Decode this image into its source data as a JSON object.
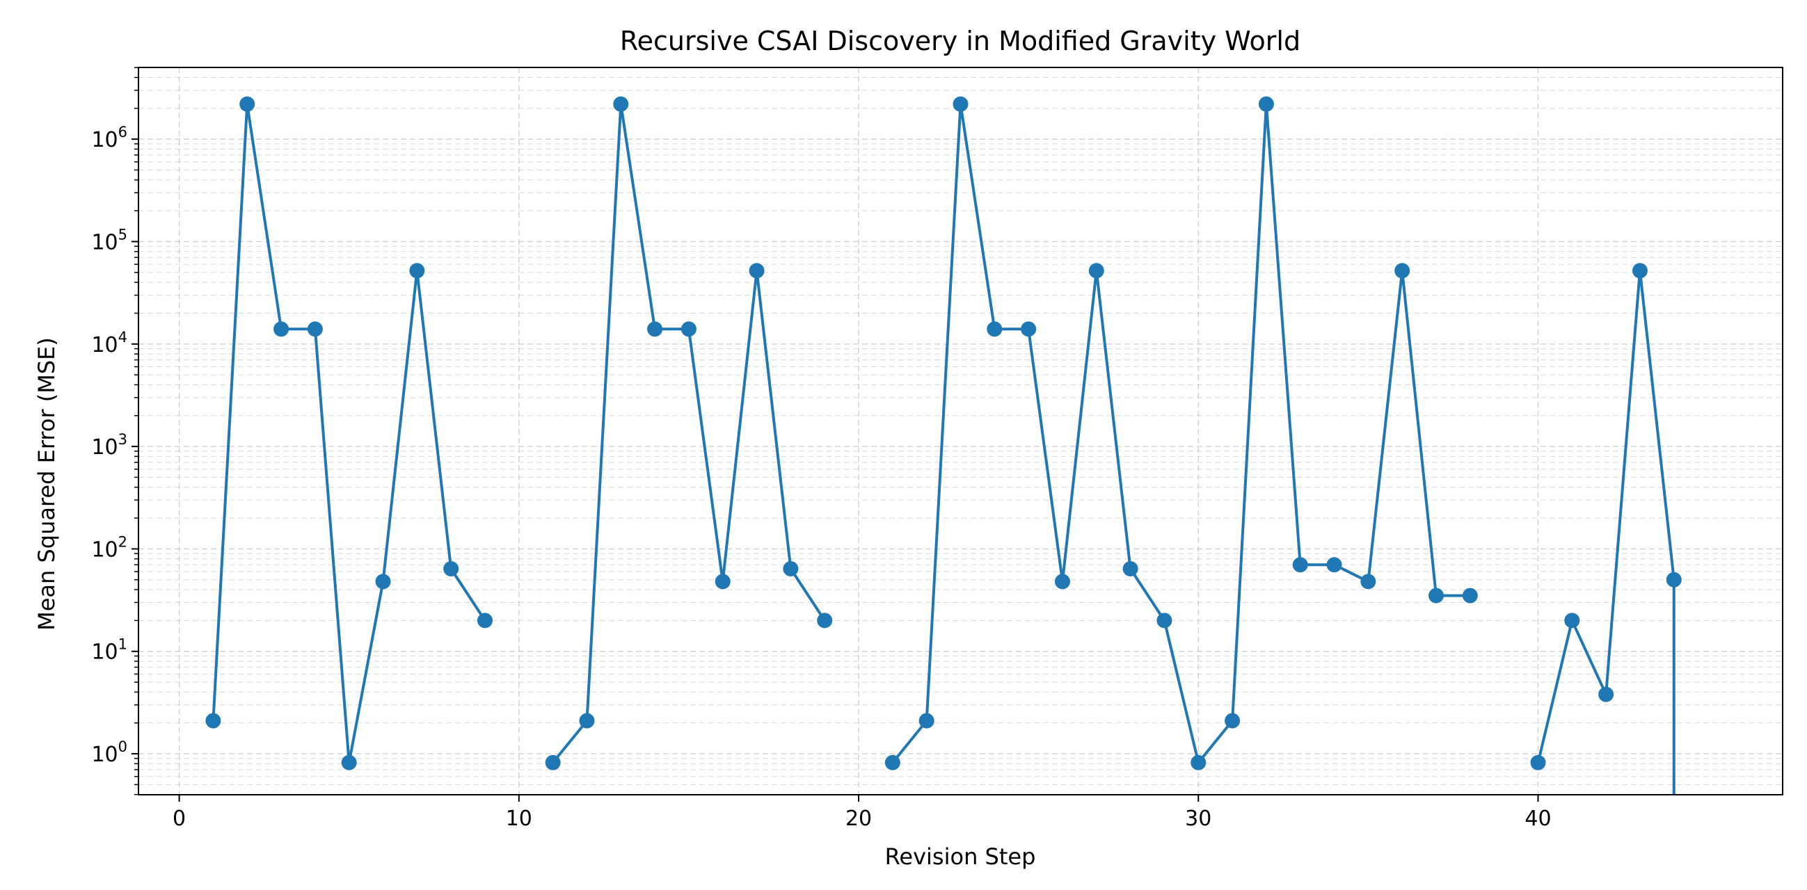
{
  "chart_data": {
    "type": "line",
    "title": "Recursive CSAI Discovery in Modified Gravity World",
    "xlabel": "Revision Step",
    "ylabel": "Mean Squared Error (MSE)",
    "yscale": "log",
    "xlim": [
      -1.2,
      47.2
    ],
    "ylim_log10": [
      -0.4,
      6.7
    ],
    "grid": true,
    "color": "#1f77b4",
    "x_ticks": [
      0,
      10,
      20,
      30,
      40
    ],
    "y_ticks": [
      {
        "exp": 0,
        "base": "10",
        "sup": "0"
      },
      {
        "exp": 1,
        "base": "10",
        "sup": "1"
      },
      {
        "exp": 2,
        "base": "10",
        "sup": "2"
      },
      {
        "exp": 3,
        "base": "10",
        "sup": "3"
      },
      {
        "exp": 4,
        "base": "10",
        "sup": "4"
      },
      {
        "exp": 5,
        "base": "10",
        "sup": "5"
      },
      {
        "exp": 6,
        "base": "10",
        "sup": "6"
      }
    ],
    "segments": [
      [
        [
          1,
          2.1
        ],
        [
          2,
          2200000
        ],
        [
          3,
          14000
        ],
        [
          4,
          14000
        ],
        [
          5,
          0.82
        ],
        [
          6,
          48
        ],
        [
          7,
          52000
        ],
        [
          8,
          64
        ],
        [
          9,
          20
        ]
      ],
      [
        [
          11,
          0.82
        ],
        [
          12,
          2.1
        ],
        [
          13,
          2200000
        ],
        [
          14,
          14000
        ],
        [
          15,
          14000
        ],
        [
          16,
          48
        ],
        [
          17,
          52000
        ],
        [
          18,
          64
        ],
        [
          19,
          20
        ]
      ],
      [
        [
          21,
          0.82
        ],
        [
          22,
          2.1
        ],
        [
          23,
          2200000
        ],
        [
          24,
          14000
        ],
        [
          25,
          14000
        ],
        [
          26,
          48
        ],
        [
          27,
          52000
        ],
        [
          28,
          64
        ],
        [
          29,
          20
        ],
        [
          30,
          0.82
        ],
        [
          31,
          2.1
        ],
        [
          32,
          2200000
        ],
        [
          33,
          70
        ],
        [
          34,
          70
        ],
        [
          35,
          48
        ],
        [
          36,
          52000
        ],
        [
          37,
          35
        ],
        [
          38,
          35
        ]
      ],
      [
        [
          40,
          0.82
        ],
        [
          41,
          20
        ],
        [
          42,
          3.8
        ],
        [
          43,
          52000
        ],
        [
          44,
          50
        ]
      ]
    ],
    "drop_to_zero_at_x": 44
  }
}
